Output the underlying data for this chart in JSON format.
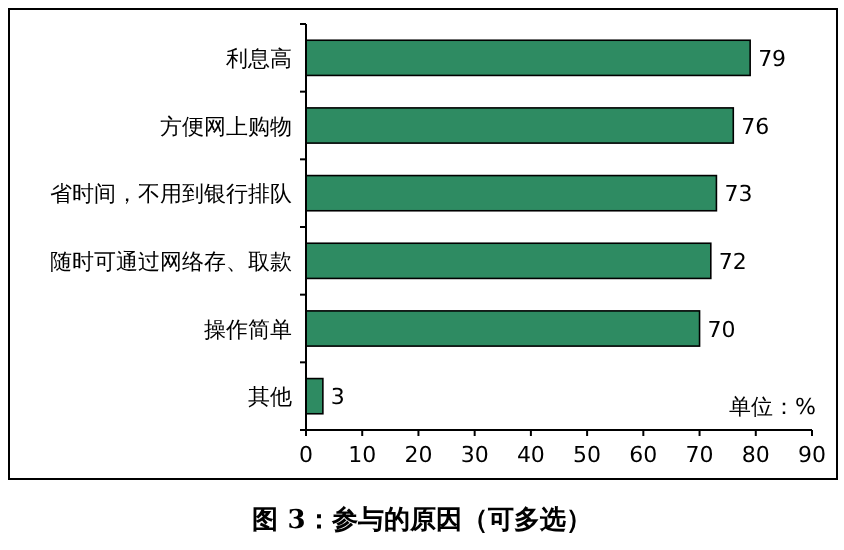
{
  "chart_data": {
    "type": "bar",
    "orientation": "horizontal",
    "title": "图 3：参与的原因（可多选）",
    "categories": [
      "利息高",
      "方便网上购物",
      "省时间，不用到银行排队",
      "随时可通过网络存、取款",
      "操作简单",
      "其他"
    ],
    "values": [
      79,
      76,
      73,
      72,
      70,
      3
    ],
    "color": "#2e8b62",
    "xlim": [
      0,
      90
    ],
    "xticks": [
      0,
      10,
      20,
      30,
      40,
      50,
      60,
      70,
      80,
      90
    ],
    "data_labels": true,
    "grid": false,
    "annotations": [
      "单位：%"
    ]
  }
}
